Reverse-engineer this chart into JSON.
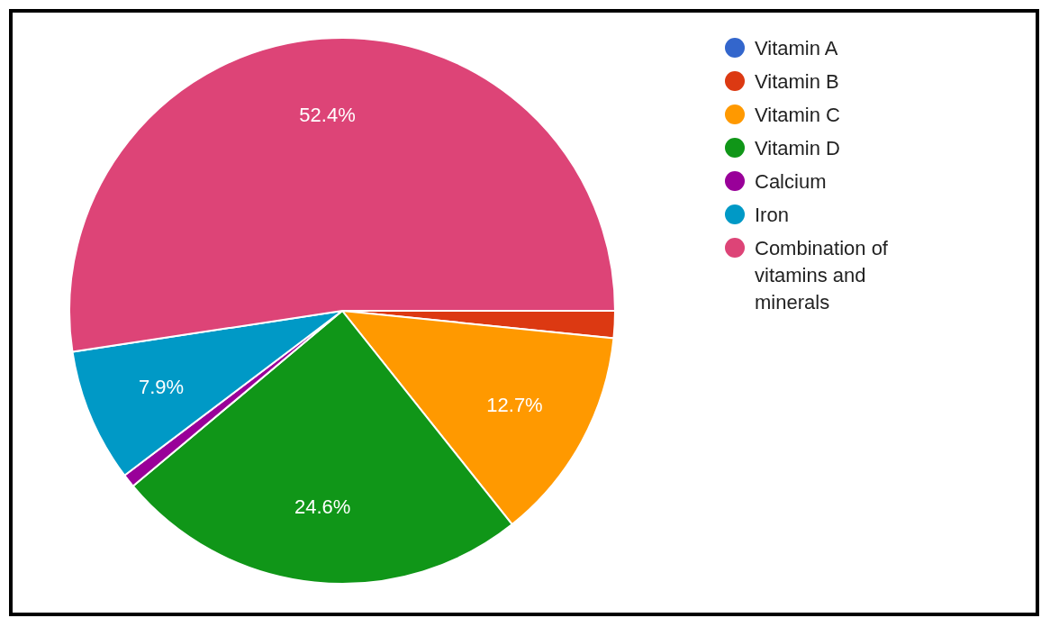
{
  "chart_data": {
    "type": "pie",
    "categories": [
      "Vitamin A",
      "Vitamin B",
      "Vitamin C",
      "Vitamin D",
      "Calcium",
      "Iron",
      "Combination of vitamins and minerals"
    ],
    "values": [
      0,
      1.6,
      12.7,
      24.6,
      0.8,
      7.9,
      52.4
    ],
    "colors": [
      "#3366cc",
      "#dc3912",
      "#ff9900",
      "#109618",
      "#990099",
      "#0099c6",
      "#dd4477"
    ],
    "value_labels": [
      null,
      null,
      "12.7%",
      "24.6%",
      null,
      "7.9%",
      "52.4%"
    ],
    "legend": "right"
  }
}
